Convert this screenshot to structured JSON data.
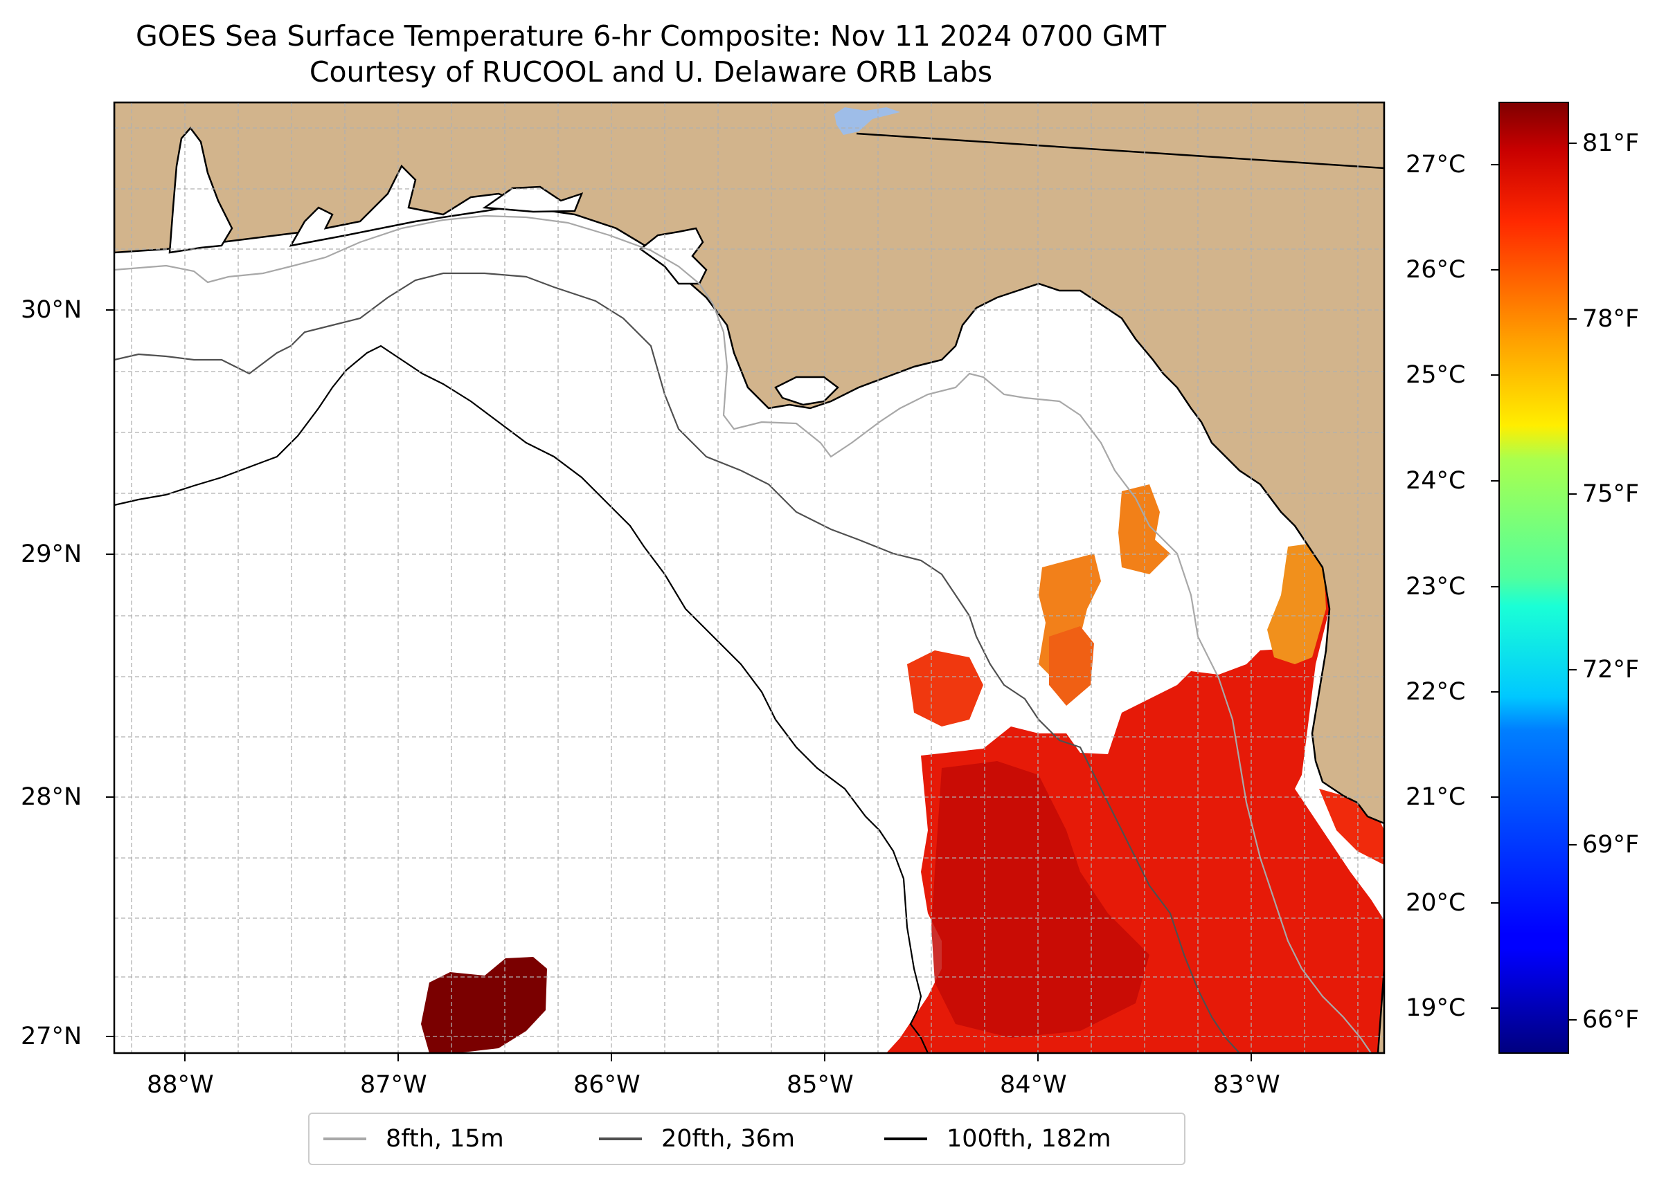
{
  "title": {
    "line1": "GOES Sea Surface Temperature 6-hr Composite: Nov 11 2024 0700 GMT",
    "line2": "Courtesy of RUCOOL and U. Delaware ORB Labs"
  },
  "map": {
    "lon_range": [
      -88.33,
      -82.38
    ],
    "lat_range": [
      26.93,
      30.85
    ],
    "lon_ticks": [
      "88°W",
      "87°W",
      "86°W",
      "85°W",
      "84°W",
      "83°W"
    ],
    "lat_ticks": [
      "30°N",
      "29°N",
      "28°N",
      "27°N"
    ],
    "gridlines": true,
    "land_color": "#d2b48c",
    "water_color": "#ffffff",
    "lake_color": "#9ebde8"
  },
  "temperature_scale": {
    "celsius_ticks": [
      "27°C",
      "26°C",
      "25°C",
      "24°C",
      "23°C",
      "22°C",
      "21°C",
      "20°C",
      "19°C"
    ],
    "fahrenheit_ticks": [
      "81°F",
      "78°F",
      "75°F",
      "72°F",
      "69°F",
      "66°F"
    ],
    "colormap": "jet",
    "range_f": [
      65.5,
      82.0
    ]
  },
  "legend": {
    "placement": "bottom-center",
    "items": [
      {
        "label": "8fth, 15m",
        "color": "#a8a8a8"
      },
      {
        "label": "20fth, 36m",
        "color": "#505050"
      },
      {
        "label": "100fth, 182m",
        "color": "#000000"
      }
    ]
  },
  "sst_patches": [
    {
      "region": "southeast shelf",
      "approx_temp_f": "80-81",
      "color": "#e8190a"
    },
    {
      "region": "central west Florida shelf",
      "approx_temp_f": "81",
      "color": "#c80c06"
    },
    {
      "region": "near Big Bend coast",
      "approx_temp_f": "78-79",
      "color": "#f2811a"
    },
    {
      "region": "offshore southwest",
      "approx_temp_f": "82",
      "color": "#7a0000"
    }
  ]
}
